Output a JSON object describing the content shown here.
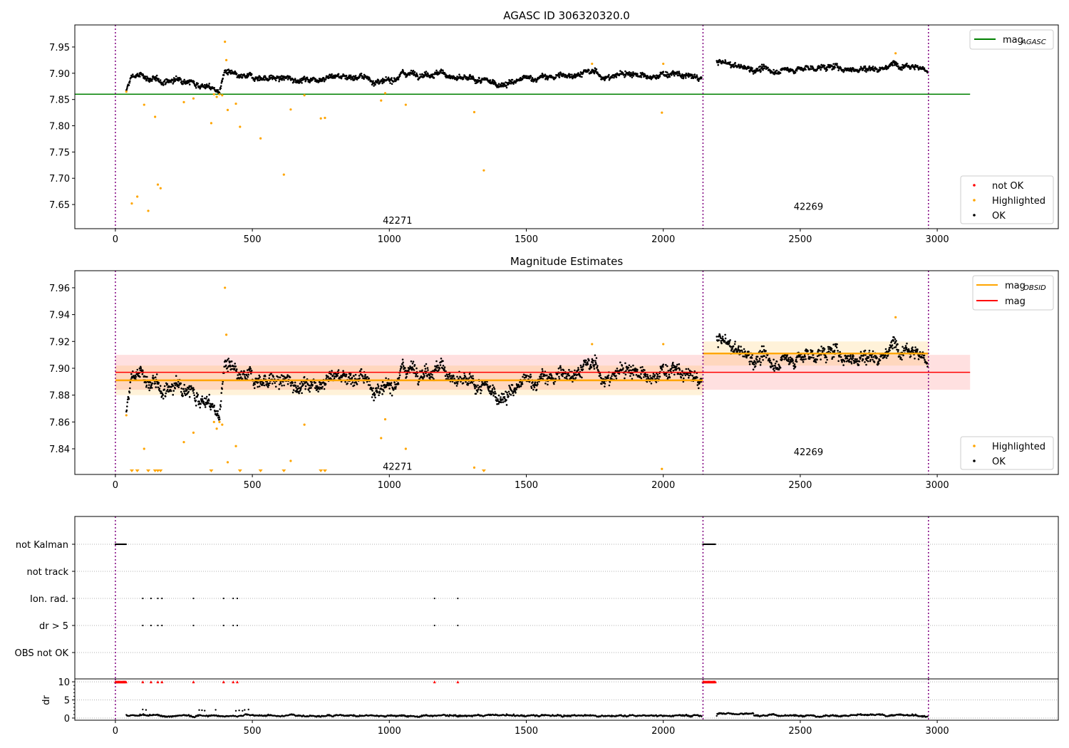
{
  "chart_data": [
    {
      "type": "scatter",
      "title": "AGASC ID 306320320.0",
      "xlim": [
        -148,
        3442
      ],
      "ylim": [
        7.604,
        7.992
      ],
      "xticks": [
        0,
        500,
        1000,
        1500,
        2000,
        2500,
        3000
      ],
      "yticks": [
        "7.65",
        "7.70",
        "7.75",
        "7.80",
        "7.85",
        "7.90",
        "7.95"
      ],
      "mag_agasc": 7.86,
      "mag_agasc_range": [
        -148,
        3120
      ],
      "legend_top": {
        "label": "mag",
        "sub": "AGASC",
        "color": "#008000",
        "placement": "top-right"
      },
      "legend_bottom": [
        {
          "label": "not OK",
          "color": "#ff0000"
        },
        {
          "label": "Highlighted",
          "color": "#ffa500"
        },
        {
          "label": "OK",
          "color": "#000000"
        }
      ],
      "annotations": [
        {
          "text": "42271",
          "x": 1030,
          "y": 7.62
        },
        {
          "text": "42269",
          "x": 2530,
          "y": 7.647
        }
      ]
    },
    {
      "type": "scatter",
      "title": "Magnitude Estimates",
      "xlim": [
        -148,
        3442
      ],
      "ylim": [
        7.8209,
        7.9727
      ],
      "xticks": [
        0,
        500,
        1000,
        1500,
        2000,
        2500,
        3000
      ],
      "yticks": [
        "7.84",
        "7.86",
        "7.88",
        "7.90",
        "7.92",
        "7.94",
        "7.96"
      ],
      "mag": 7.897,
      "mag_band": [
        7.884,
        7.91
      ],
      "mag_range": [
        0,
        3120
      ],
      "mag_obsid": [
        {
          "x": [
            0,
            2145
          ],
          "value": 7.891,
          "band": [
            7.88,
            7.902
          ]
        },
        {
          "x": [
            2145,
            2968
          ],
          "value": 7.911,
          "band": [
            7.902,
            7.92
          ]
        }
      ],
      "legend_top": [
        {
          "label": "mag",
          "sub": "OBSID",
          "color": "#ffa500"
        },
        {
          "label": "mag",
          "sub": "",
          "color": "#ff0000"
        }
      ],
      "legend_bottom": [
        {
          "label": "Highlighted",
          "color": "#ffa500"
        },
        {
          "label": "OK",
          "color": "#000000"
        }
      ],
      "annotations": [
        {
          "text": "42271",
          "x": 1030,
          "y": 7.827
        },
        {
          "text": "42269",
          "x": 2530,
          "y": 7.838
        }
      ]
    },
    {
      "type": "scatter",
      "title": "",
      "flag_labels": [
        "not Kalman",
        "not track",
        "Ion. rad.",
        "dr > 5",
        "OBS not OK"
      ],
      "ylabel": "dr",
      "dr_yticks": [
        "0",
        "5",
        "10"
      ],
      "dr_ylim": [
        -0.6,
        10.8
      ],
      "not_kalman_ranges": [
        [
          0,
          40
        ],
        [
          2145,
          2190
        ]
      ],
      "ion_rad_x": [
        100,
        130,
        155,
        170,
        285,
        395,
        430,
        445,
        1165,
        1250
      ],
      "dr_gt5_x": [
        100,
        130,
        155,
        170,
        285,
        395,
        430,
        445,
        1165,
        1250
      ]
    }
  ],
  "obsid_boundaries": [
    0,
    2145,
    2968
  ],
  "obsid_segments": [
    [
      40,
      2140
    ],
    [
      2195,
      2965
    ]
  ],
  "baseline": [
    [
      40,
      7.865
    ],
    [
      60,
      7.895
    ],
    [
      100,
      7.895
    ],
    [
      150,
      7.885
    ],
    [
      200,
      7.885
    ],
    [
      250,
      7.89
    ],
    [
      300,
      7.88
    ],
    [
      350,
      7.872
    ],
    [
      380,
      7.865
    ],
    [
      400,
      7.905
    ],
    [
      450,
      7.89
    ],
    [
      500,
      7.893
    ],
    [
      600,
      7.89
    ],
    [
      700,
      7.888
    ],
    [
      800,
      7.895
    ],
    [
      900,
      7.893
    ],
    [
      980,
      7.88
    ],
    [
      1050,
      7.9
    ],
    [
      1100,
      7.9
    ],
    [
      1200,
      7.9
    ],
    [
      1250,
      7.888
    ],
    [
      1300,
      7.888
    ],
    [
      1400,
      7.88
    ],
    [
      1450,
      7.882
    ],
    [
      1500,
      7.89
    ],
    [
      1600,
      7.893
    ],
    [
      1700,
      7.9
    ],
    [
      1750,
      7.902
    ],
    [
      1800,
      7.89
    ],
    [
      1850,
      7.9
    ],
    [
      1900,
      7.9
    ],
    [
      1950,
      7.888
    ],
    [
      2000,
      7.9
    ],
    [
      2050,
      7.897
    ],
    [
      2140,
      7.89
    ],
    [
      2195,
      7.922
    ],
    [
      2300,
      7.91
    ],
    [
      2400,
      7.905
    ],
    [
      2500,
      7.908
    ],
    [
      2600,
      7.912
    ],
    [
      2700,
      7.908
    ],
    [
      2800,
      7.91
    ],
    [
      2850,
      7.918
    ],
    [
      2900,
      7.918
    ],
    [
      2965,
      7.905
    ]
  ],
  "highlighted": [
    [
      40,
      7.865
    ],
    [
      60,
      7.652
    ],
    [
      80,
      7.665
    ],
    [
      105,
      7.84
    ],
    [
      120,
      7.638
    ],
    [
      145,
      7.817
    ],
    [
      155,
      7.688
    ],
    [
      165,
      7.681
    ],
    [
      250,
      7.845
    ],
    [
      285,
      7.852
    ],
    [
      350,
      7.805
    ],
    [
      360,
      7.86
    ],
    [
      370,
      7.855
    ],
    [
      380,
      7.86
    ],
    [
      390,
      7.858
    ],
    [
      400,
      7.96
    ],
    [
      405,
      7.925
    ],
    [
      410,
      7.83
    ],
    [
      440,
      7.842
    ],
    [
      455,
      7.798
    ],
    [
      530,
      7.776
    ],
    [
      615,
      7.707
    ],
    [
      640,
      7.831
    ],
    [
      690,
      7.858
    ],
    [
      750,
      7.814
    ],
    [
      765,
      7.815
    ],
    [
      970,
      7.848
    ],
    [
      985,
      7.862
    ],
    [
      1060,
      7.84
    ],
    [
      1310,
      7.826
    ],
    [
      1345,
      7.715
    ],
    [
      1740,
      7.918
    ],
    [
      1995,
      7.825
    ],
    [
      2000,
      7.918
    ],
    [
      2848,
      7.938
    ]
  ],
  "colors": {
    "ok": "#000000",
    "highlighted": "#ffa500",
    "not_ok": "#ff0000",
    "agasc": "#008000",
    "mag": "#ff0000",
    "boundary": "#800080"
  }
}
